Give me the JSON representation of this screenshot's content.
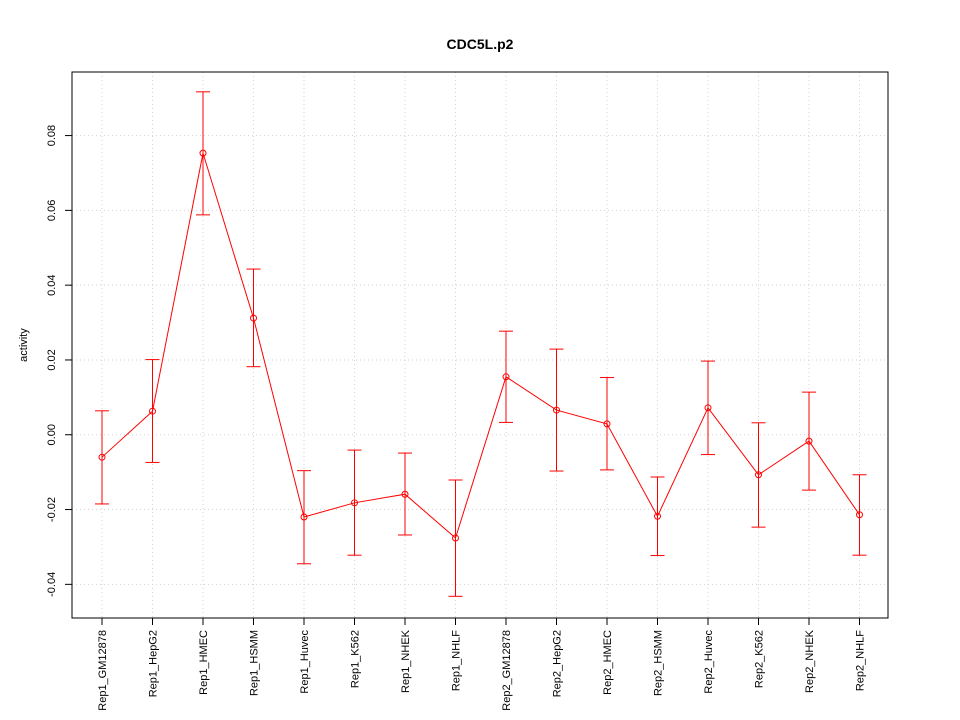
{
  "chart_data": {
    "type": "line",
    "title": "CDC5L.p2",
    "xlabel": "",
    "ylabel": "activity",
    "ylim": [
      -0.049,
      0.097
    ],
    "y_ticks": [
      "-0.04",
      "-0.02",
      "0.00",
      "0.02",
      "0.04",
      "0.06",
      "0.08"
    ],
    "y_tick_values": [
      -0.04,
      -0.02,
      0.0,
      0.02,
      0.04,
      0.06,
      0.08
    ],
    "grid": true,
    "color": "#ff0000",
    "categories": [
      "Rep1_GM12878",
      "Rep1_HepG2",
      "Rep1_HMEC",
      "Rep1_HSMM",
      "Rep1_Huvec",
      "Rep1_K562",
      "Rep1_NHEK",
      "Rep1_NHLF",
      "Rep2_GM12878",
      "Rep2_HepG2",
      "Rep2_HMEC",
      "Rep2_HSMM",
      "Rep2_Huvec",
      "Rep2_K562",
      "Rep2_NHEK",
      "Rep2_NHLF"
    ],
    "values": [
      -0.006,
      0.0063,
      0.0753,
      0.0312,
      -0.022,
      -0.0182,
      -0.0159,
      -0.0276,
      0.0155,
      0.0066,
      0.0029,
      -0.0218,
      0.0072,
      -0.0107,
      -0.0017,
      -0.0214
    ],
    "lower": [
      -0.0185,
      -0.0074,
      0.0588,
      0.0182,
      -0.0345,
      -0.0322,
      -0.0268,
      -0.0432,
      0.0033,
      -0.0097,
      -0.0094,
      -0.0323,
      -0.0053,
      -0.0247,
      -0.0148,
      -0.0322
    ],
    "upper": [
      0.0064,
      0.0201,
      0.0917,
      0.0443,
      -0.0096,
      -0.0041,
      -0.0049,
      -0.0121,
      0.0277,
      0.0229,
      0.0153,
      -0.0113,
      0.0197,
      0.0032,
      0.0114,
      -0.0107
    ]
  }
}
